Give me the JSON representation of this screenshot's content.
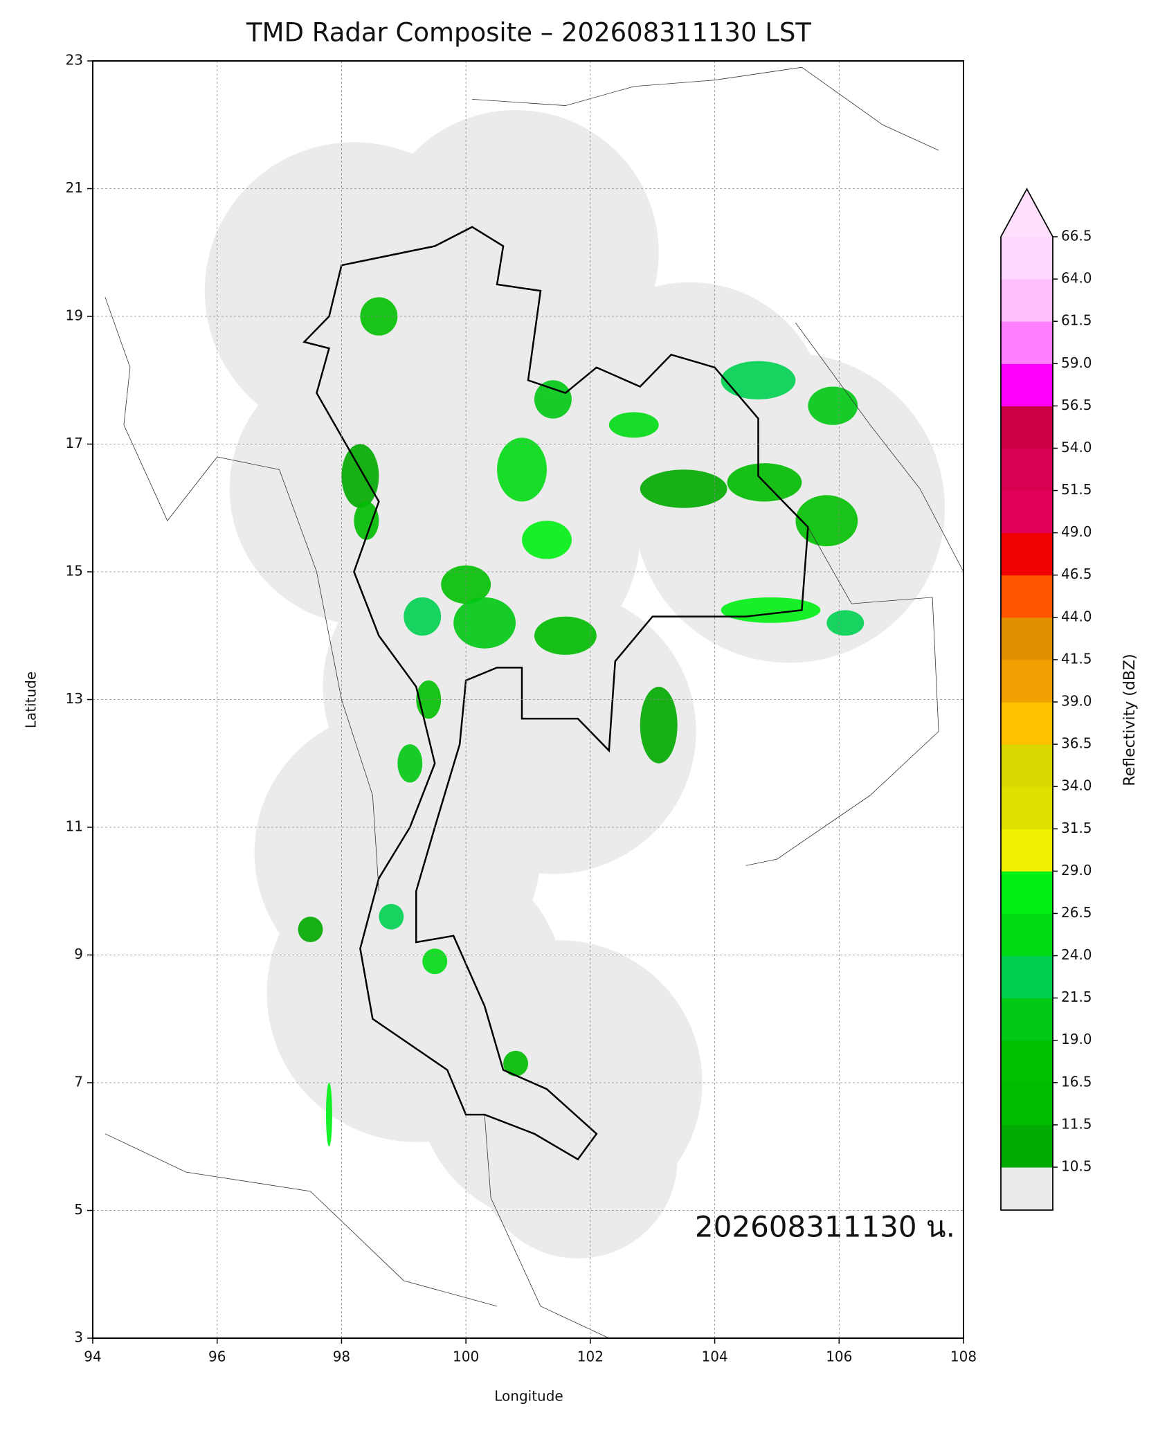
{
  "map": {
    "title": "TMD Radar Composite – 202608311130 LST",
    "x_label": "Longitude",
    "y_label": "Latitude",
    "xlim": [
      94,
      108
    ],
    "ylim": [
      3,
      23
    ],
    "xticks": [
      94,
      96,
      98,
      100,
      102,
      104,
      106,
      108
    ],
    "yticks": [
      3,
      5,
      7,
      9,
      11,
      13,
      15,
      17,
      19,
      21,
      23
    ],
    "grid": true,
    "timestamp": "202608311130 น.",
    "colorbar": {
      "label": "Reflectivity (dBZ)",
      "levels": [
        10.5,
        11.5,
        16.5,
        {
          "value": 19,
          "label": "19.0"
        },
        21.5,
        {
          "value": 24,
          "label": "24.0"
        },
        26.5,
        {
          "value": 29,
          "label": "29.0"
        },
        31.5,
        {
          "value": 34,
          "label": "34.0"
        },
        36.5,
        {
          "value": 39,
          "label": "39.0"
        },
        41.5,
        {
          "value": 44,
          "label": "44.0"
        },
        46.5,
        {
          "value": 49,
          "label": "49.0"
        },
        51.5,
        {
          "value": 54,
          "label": "54.0"
        },
        56.5,
        {
          "value": 59,
          "label": "59.0"
        },
        61.5,
        {
          "value": 64,
          "label": "64.0"
        },
        66.5
      ],
      "colors": [
        "#00aa00",
        "#00bb00",
        "#00c000",
        "#00c814",
        "#00d050",
        "#00dc14",
        "#00f014",
        "#f0f000",
        "#e0e000",
        "#d8d800",
        "#ffc000",
        "#f0a000",
        "#e09000",
        "#ff5500",
        "#f00000",
        "#e0005a",
        "#d80050",
        "#cc0044",
        "#ff00ff",
        "#ff80ff",
        "#ffc0ff",
        "#ffd8ff"
      ],
      "under_color": "#ebebeb",
      "over_color": "#ffe0ff"
    }
  }
}
